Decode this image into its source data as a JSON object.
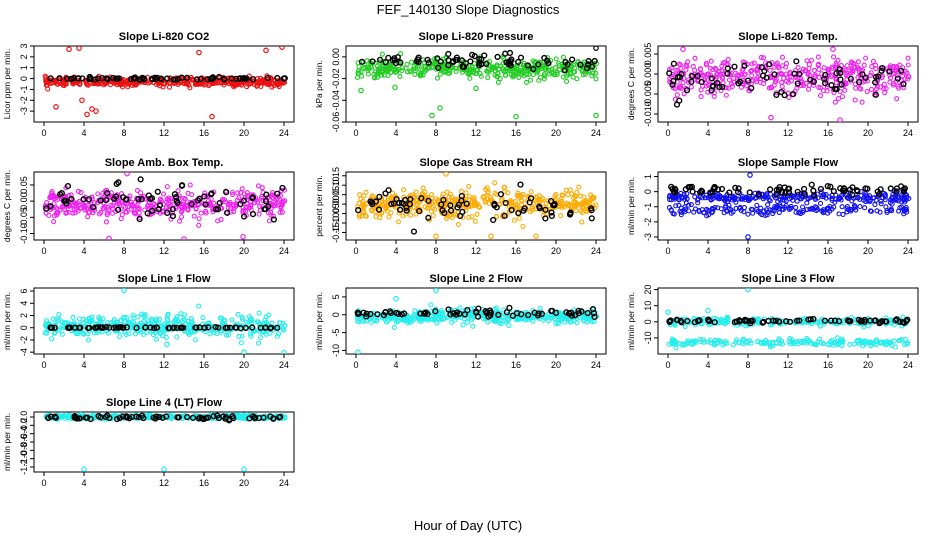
{
  "figure": {
    "title": "FEF_140130  Slope Diagnostics",
    "xlabel": "Hour of Day (UTC)"
  },
  "colors": {
    "red": "#ee1111",
    "green": "#22cc22",
    "magenta": "#ee22ee",
    "orange": "#ffaa00",
    "blue": "#1111ee",
    "cyan": "#22eeee",
    "reference": "#000000"
  },
  "chart_data": [
    {
      "type": "scatter",
      "title": "Slope Li-820 CO2",
      "ylabel": "Licor ppm per min.",
      "xlim": [
        -1,
        25
      ],
      "ylim": [
        -4,
        3
      ],
      "xticks": [
        0,
        4,
        8,
        12,
        16,
        20,
        24
      ],
      "yticks": [
        -3,
        -2,
        -1,
        0,
        1,
        2,
        3
      ],
      "ytick_labels": [
        "-3",
        "-2",
        "-1",
        "0",
        "1",
        "2",
        "3"
      ],
      "color": "red",
      "series": [
        {
          "color": "red",
          "center": -0.3,
          "spread": 0.35,
          "pattern": "single",
          "outliers": [
            [
              2.5,
              2.7
            ],
            [
              3.5,
              2.8
            ],
            [
              3.8,
              -2.0
            ],
            [
              4.3,
              -3.3
            ],
            [
              4.8,
              -2.8
            ],
            [
              5.2,
              -3.0
            ],
            [
              15.5,
              2.4
            ],
            [
              16.8,
              -3.5
            ],
            [
              22.2,
              2.6
            ],
            [
              23.8,
              2.9
            ],
            [
              1.2,
              -2.6
            ]
          ]
        },
        {
          "color": "reference",
          "center": 0.0,
          "spread": 0.08,
          "pattern": "single",
          "outliers": []
        }
      ]
    },
    {
      "type": "scatter",
      "title": "Slope Li-820 Pressure",
      "ylabel": "kPa per min.",
      "xlim": [
        -1,
        25
      ],
      "ylim": [
        -0.06,
        0.01
      ],
      "xticks": [
        0,
        4,
        8,
        12,
        16,
        20,
        24
      ],
      "yticks": [
        -0.06,
        -0.04,
        -0.02,
        0.0
      ],
      "ytick_labels": [
        "-0.06",
        "-0.04",
        "-0.02",
        "0.00"
      ],
      "color": "green",
      "series": [
        {
          "color": "green",
          "center": -0.011,
          "spread": 0.008,
          "pattern": "single",
          "outliers": [
            [
              7.6,
              -0.054
            ],
            [
              8.4,
              -0.047
            ],
            [
              16.0,
              -0.055
            ],
            [
              24.0,
              -0.054
            ],
            [
              0.5,
              -0.031
            ],
            [
              3.9,
              -0.028
            ],
            [
              12.0,
              -0.029
            ]
          ]
        },
        {
          "color": "reference",
          "center": -0.004,
          "spread": 0.004,
          "pattern": "single",
          "outliers": [
            [
              24.0,
              0.008
            ]
          ]
        }
      ]
    },
    {
      "type": "scatter",
      "title": "Slope Li-820 Temp.",
      "ylabel": "degrees C per min.",
      "xlim": [
        -1,
        25
      ],
      "ylim": [
        -0.012,
        0.007
      ],
      "xticks": [
        0,
        4,
        8,
        12,
        16,
        20,
        24
      ],
      "yticks": [
        -0.01,
        -0.005,
        0.0,
        0.005
      ],
      "ytick_labels": [
        "-0.010",
        "-0.005",
        "0.000",
        "0.005"
      ],
      "color": "magenta",
      "series": [
        {
          "color": "magenta",
          "center": -0.001,
          "spread": 0.0042,
          "pattern": "single",
          "outliers": [
            [
              1.5,
              0.0062
            ],
            [
              17.2,
              -0.0115
            ],
            [
              16.5,
              0.0062
            ],
            [
              10.3,
              -0.0109
            ]
          ]
        },
        {
          "color": "reference",
          "center": -0.001,
          "spread": 0.0025,
          "pattern": "single",
          "outliers": []
        }
      ]
    },
    {
      "type": "scatter",
      "title": "Slope Amb. Box Temp.",
      "ylabel": "degrees C per min.",
      "xlim": [
        -1,
        25
      ],
      "ylim": [
        -0.12,
        0.09
      ],
      "xticks": [
        0,
        4,
        8,
        12,
        16,
        20,
        24
      ],
      "yticks": [
        -0.1,
        -0.05,
        0.0,
        0.05
      ],
      "ytick_labels": [
        "-0.10",
        "-0.05",
        "0.00",
        "0.05"
      ],
      "color": "magenta",
      "series": [
        {
          "color": "magenta",
          "center": -0.01,
          "spread": 0.04,
          "pattern": "single",
          "outliers": [
            [
              8.3,
              0.085
            ],
            [
              6.5,
              -0.115
            ],
            [
              14.0,
              -0.117
            ],
            [
              19.9,
              -0.11
            ]
          ]
        },
        {
          "color": "reference",
          "center": 0.0,
          "spread": 0.04,
          "pattern": "single",
          "outliers": []
        }
      ]
    },
    {
      "type": "scatter",
      "title": "Slope Gas Stream RH",
      "ylabel": "percent per min.",
      "xlim": [
        -1,
        25
      ],
      "ylim": [
        -0.19,
        0.17
      ],
      "xticks": [
        0,
        4,
        8,
        12,
        16,
        20,
        24
      ],
      "yticks": [
        -0.15,
        -0.1,
        -0.05,
        0.0,
        0.05,
        0.1,
        0.15
      ],
      "ytick_labels": [
        "-0.15",
        "-0.10",
        "-0.05",
        "0.00",
        "0.05",
        "0.10",
        "0.15"
      ],
      "color": "orange",
      "series": [
        {
          "color": "orange",
          "center": 0.0,
          "spread": 0.065,
          "pattern": "single",
          "outliers": [
            [
              9.0,
              0.16
            ],
            [
              8.0,
              -0.17
            ],
            [
              13.5,
              -0.17
            ],
            [
              18.0,
              -0.17
            ]
          ]
        },
        {
          "color": "reference",
          "center": -0.01,
          "spread": 0.05,
          "pattern": "single",
          "outliers": []
        }
      ]
    },
    {
      "type": "scatter",
      "title": "Slope Sample Flow",
      "ylabel": "ml/min per min.",
      "xlim": [
        -1,
        25
      ],
      "ylim": [
        -3.2,
        1.3
      ],
      "xticks": [
        0,
        4,
        8,
        12,
        16,
        20,
        24
      ],
      "yticks": [
        -3,
        -2,
        -1,
        0,
        1
      ],
      "ytick_labels": [
        "-3",
        "-2",
        "-1",
        "0",
        "1"
      ],
      "color": "blue",
      "series": [
        {
          "color": "blue",
          "center": -0.4,
          "spread": 0.3,
          "pattern": "band",
          "band_center": -1.2,
          "outliers": [
            [
              8.0,
              -3.0
            ],
            [
              8.2,
              1.1
            ]
          ]
        },
        {
          "color": "reference",
          "center": 0.1,
          "spread": 0.18,
          "pattern": "single",
          "outliers": []
        }
      ]
    },
    {
      "type": "scatter",
      "title": "Slope Line 1 Flow",
      "ylabel": "ml/min per min.",
      "xlim": [
        -1,
        25
      ],
      "ylim": [
        -4.3,
        6.5
      ],
      "xticks": [
        0,
        4,
        8,
        12,
        16,
        20,
        24
      ],
      "yticks": [
        -4,
        -2,
        0,
        2,
        4,
        6
      ],
      "ytick_labels": [
        "-4",
        "-2",
        "0",
        "2",
        "4",
        "6"
      ],
      "color": "cyan",
      "series": [
        {
          "color": "cyan",
          "center": 0.2,
          "spread": 1.6,
          "pattern": "single",
          "outliers": [
            [
              8.0,
              6.1
            ],
            [
              20.0,
              -4.0
            ],
            [
              24.0,
              -4.1
            ],
            [
              12.3,
              -2.7
            ]
          ]
        },
        {
          "color": "reference",
          "center": 0.0,
          "spread": 0.05,
          "pattern": "single",
          "outliers": []
        }
      ]
    },
    {
      "type": "scatter",
      "title": "Slope Line 2 Flow",
      "ylabel": "ml/min per min.",
      "xlim": [
        -1,
        25
      ],
      "ylim": [
        -11,
        7.5
      ],
      "xticks": [
        0,
        4,
        8,
        12,
        16,
        20,
        24
      ],
      "yticks": [
        -10,
        -5,
        0,
        5
      ],
      "ytick_labels": [
        "-10",
        "-5",
        "0",
        "5"
      ],
      "color": "cyan",
      "series": [
        {
          "color": "cyan",
          "center": -0.5,
          "spread": 1.8,
          "pattern": "single",
          "outliers": [
            [
              0.2,
              -10.5
            ],
            [
              8.0,
              6.8
            ],
            [
              4.0,
              4.5
            ]
          ]
        },
        {
          "color": "reference",
          "center": 0.5,
          "spread": 0.6,
          "pattern": "single",
          "outliers": []
        }
      ]
    },
    {
      "type": "scatter",
      "title": "Slope Line 3 Flow",
      "ylabel": "ml/min per min.",
      "xlim": [
        -1,
        25
      ],
      "ylim": [
        -20,
        21
      ],
      "xticks": [
        0,
        4,
        8,
        12,
        16,
        20,
        24
      ],
      "yticks": [
        -10,
        0,
        10,
        20
      ],
      "ytick_labels": [
        "-10",
        "0",
        "10",
        "20"
      ],
      "color": "cyan",
      "series": [
        {
          "color": "cyan",
          "center": 0.0,
          "spread": 2.0,
          "pattern": "band",
          "band_center": -13.0,
          "outliers": [
            [
              8.0,
              20.0
            ],
            [
              4.0,
              7.0
            ],
            [
              0.0,
              6.0
            ]
          ]
        },
        {
          "color": "reference",
          "center": 0.5,
          "spread": 0.8,
          "pattern": "single",
          "outliers": []
        }
      ]
    },
    {
      "type": "scatter",
      "title": "Slope Line 4 (LT) Flow",
      "ylabel": "ml/min per min.",
      "xlim": [
        -1,
        25
      ],
      "ylim": [
        -1.32,
        0.12
      ],
      "xticks": [
        0,
        4,
        8,
        12,
        16,
        20,
        24
      ],
      "yticks": [
        -1.2,
        -1.0,
        -0.8,
        -0.6,
        -0.4,
        -0.2,
        0.0
      ],
      "ytick_labels": [
        "-1.2",
        "-1.0",
        "-0.8",
        "-0.6",
        "-0.4",
        "-0.2",
        "0.0"
      ],
      "color": "cyan",
      "series": [
        {
          "color": "cyan",
          "center": 0.0,
          "spread": 0.04,
          "pattern": "single",
          "outliers": [
            [
              4.0,
              -1.25
            ],
            [
              12.0,
              -1.25
            ],
            [
              20.0,
              -1.25
            ]
          ]
        },
        {
          "color": "reference",
          "center": -0.01,
          "spread": 0.03,
          "pattern": "single",
          "outliers": []
        }
      ]
    }
  ]
}
